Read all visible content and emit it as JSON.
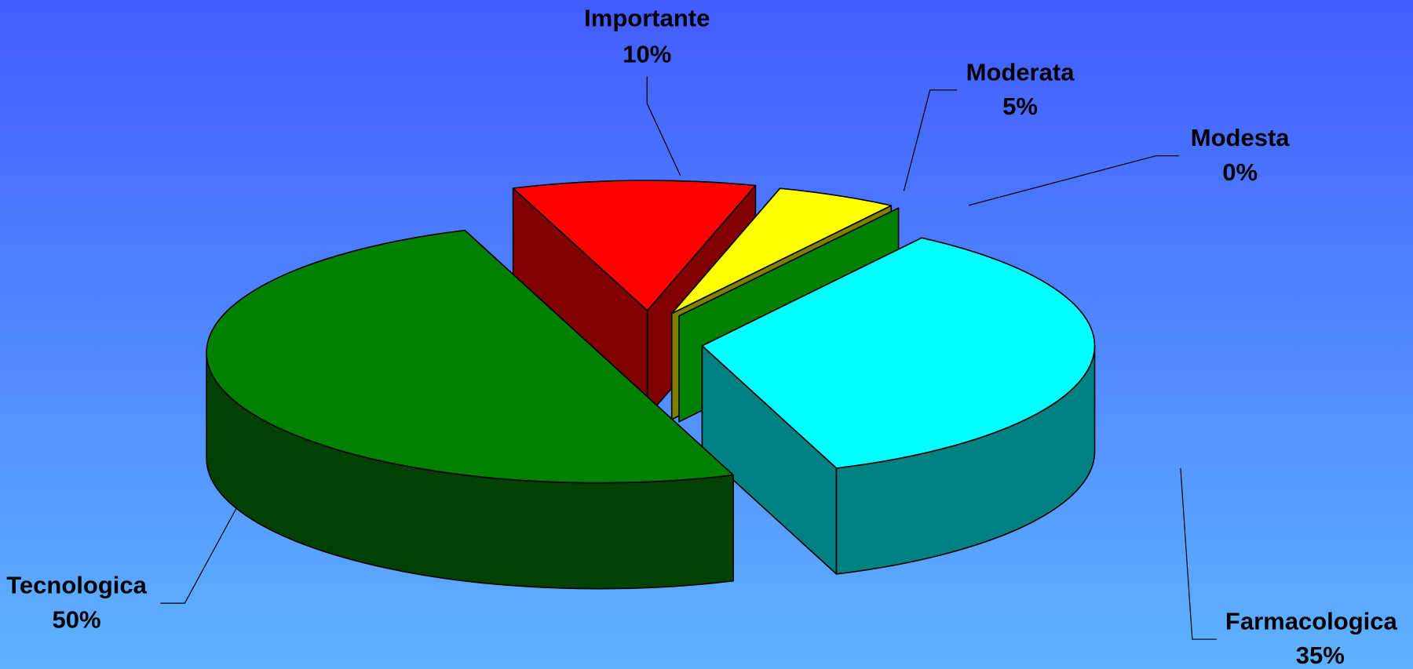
{
  "chart_data": {
    "type": "pie3d",
    "categories": [
      "Importante",
      "Moderata",
      "Modesta",
      "Farmacologica",
      "Tecnologica"
    ],
    "values": [
      10,
      5,
      0,
      35,
      50
    ],
    "value_labels": [
      "10%",
      "5%",
      "0%",
      "35%",
      "50%"
    ],
    "colors": [
      "#ff0000",
      "#ffff00",
      "#008000",
      "#00ffff",
      "#008000"
    ]
  }
}
